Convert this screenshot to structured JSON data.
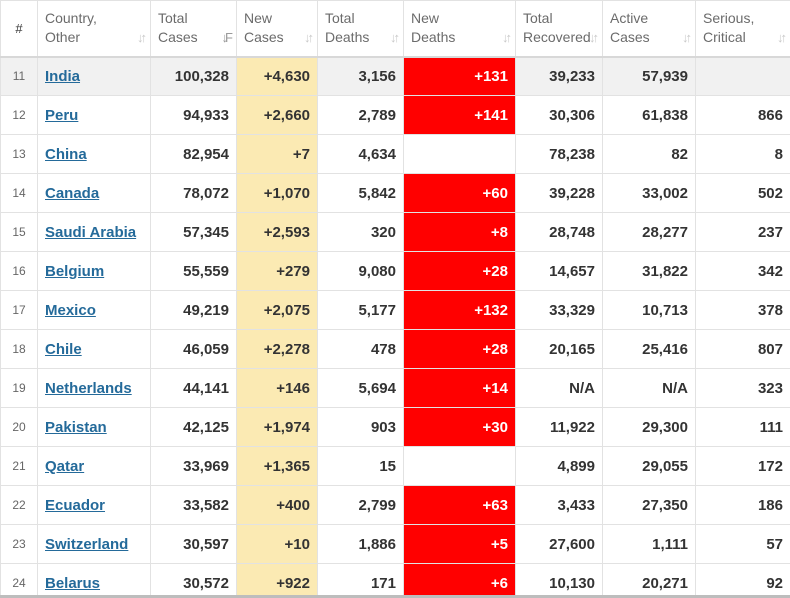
{
  "headers": {
    "num": "#",
    "country_line1": "Country,",
    "country_line2": "Other",
    "total_cases_line1": "Total",
    "total_cases_line2": "Cases",
    "new_cases_line1": "New",
    "new_cases_line2": "Cases",
    "total_deaths_line1": "Total",
    "total_deaths_line2": "Deaths",
    "new_deaths_line1": "New",
    "new_deaths_line2": "Deaths",
    "total_recovered_line1": "Total",
    "total_recovered_line2": "Recovered",
    "active_cases_line1": "Active",
    "active_cases_line2": "Cases",
    "serious_line1": "Serious,",
    "serious_line2": "Critical",
    "sort_glyph": "↓↑",
    "sort_active_glyph": "↓F"
  },
  "rows": [
    {
      "rank": "11",
      "country": "India",
      "total_cases": "100,328",
      "new_cases": "+4,630",
      "total_deaths": "3,156",
      "new_deaths": "+131",
      "total_recovered": "39,233",
      "active_cases": "57,939",
      "serious": ""
    },
    {
      "rank": "12",
      "country": "Peru",
      "total_cases": "94,933",
      "new_cases": "+2,660",
      "total_deaths": "2,789",
      "new_deaths": "+141",
      "total_recovered": "30,306",
      "active_cases": "61,838",
      "serious": "866"
    },
    {
      "rank": "13",
      "country": "China",
      "total_cases": "82,954",
      "new_cases": "+7",
      "total_deaths": "4,634",
      "new_deaths": "",
      "total_recovered": "78,238",
      "active_cases": "82",
      "serious": "8"
    },
    {
      "rank": "14",
      "country": "Canada",
      "total_cases": "78,072",
      "new_cases": "+1,070",
      "total_deaths": "5,842",
      "new_deaths": "+60",
      "total_recovered": "39,228",
      "active_cases": "33,002",
      "serious": "502"
    },
    {
      "rank": "15",
      "country": "Saudi Arabia",
      "total_cases": "57,345",
      "new_cases": "+2,593",
      "total_deaths": "320",
      "new_deaths": "+8",
      "total_recovered": "28,748",
      "active_cases": "28,277",
      "serious": "237"
    },
    {
      "rank": "16",
      "country": "Belgium",
      "total_cases": "55,559",
      "new_cases": "+279",
      "total_deaths": "9,080",
      "new_deaths": "+28",
      "total_recovered": "14,657",
      "active_cases": "31,822",
      "serious": "342"
    },
    {
      "rank": "17",
      "country": "Mexico",
      "total_cases": "49,219",
      "new_cases": "+2,075",
      "total_deaths": "5,177",
      "new_deaths": "+132",
      "total_recovered": "33,329",
      "active_cases": "10,713",
      "serious": "378"
    },
    {
      "rank": "18",
      "country": "Chile",
      "total_cases": "46,059",
      "new_cases": "+2,278",
      "total_deaths": "478",
      "new_deaths": "+28",
      "total_recovered": "20,165",
      "active_cases": "25,416",
      "serious": "807"
    },
    {
      "rank": "19",
      "country": "Netherlands",
      "total_cases": "44,141",
      "new_cases": "+146",
      "total_deaths": "5,694",
      "new_deaths": "+14",
      "total_recovered": "N/A",
      "active_cases": "N/A",
      "serious": "323"
    },
    {
      "rank": "20",
      "country": "Pakistan",
      "total_cases": "42,125",
      "new_cases": "+1,974",
      "total_deaths": "903",
      "new_deaths": "+30",
      "total_recovered": "11,922",
      "active_cases": "29,300",
      "serious": "111"
    },
    {
      "rank": "21",
      "country": "Qatar",
      "total_cases": "33,969",
      "new_cases": "+1,365",
      "total_deaths": "15",
      "new_deaths": "",
      "total_recovered": "4,899",
      "active_cases": "29,055",
      "serious": "172"
    },
    {
      "rank": "22",
      "country": "Ecuador",
      "total_cases": "33,582",
      "new_cases": "+400",
      "total_deaths": "2,799",
      "new_deaths": "+63",
      "total_recovered": "3,433",
      "active_cases": "27,350",
      "serious": "186"
    },
    {
      "rank": "23",
      "country": "Switzerland",
      "total_cases": "30,597",
      "new_cases": "+10",
      "total_deaths": "1,886",
      "new_deaths": "+5",
      "total_recovered": "27,600",
      "active_cases": "1,111",
      "serious": "57"
    },
    {
      "rank": "24",
      "country": "Belarus",
      "total_cases": "30,572",
      "new_cases": "+922",
      "total_deaths": "171",
      "new_deaths": "+6",
      "total_recovered": "10,130",
      "active_cases": "20,271",
      "serious": "92"
    }
  ],
  "colors": {
    "new_cases_bg": "#fbeab3",
    "new_deaths_bg": "#ff0000",
    "link": "#246a9a",
    "highlight_row": "#f1f1f1"
  }
}
